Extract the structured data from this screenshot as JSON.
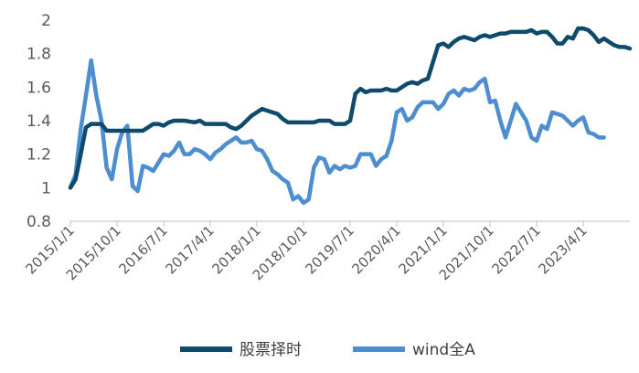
{
  "chart_data": {
    "type": "line",
    "title": "",
    "xlabel": "",
    "ylabel": "",
    "ylim": [
      0.8,
      2.0
    ],
    "yticks": [
      "0.8",
      "1",
      "1.2",
      "1.4",
      "1.6",
      "1.8",
      "2"
    ],
    "xticks": [
      "2015/1/1",
      "2015/10/1",
      "2016/7/1",
      "2017/4/1",
      "2018/1/1",
      "2018/10/1",
      "2019/7/1",
      "2020/4/1",
      "2021/1/1",
      "2021/10/1",
      "2022/7/1",
      "2023/4/1"
    ],
    "grid": false,
    "legend_position": "bottom",
    "colors": {
      "series1": "#0d4a6b",
      "series2": "#4c8ed0",
      "axis": "#bfbfbf"
    },
    "series": [
      {
        "name": "股票择时",
        "points": [
          [
            0,
            1.0
          ],
          [
            1,
            1.05
          ],
          [
            2,
            1.2
          ],
          [
            3,
            1.36
          ],
          [
            4,
            1.38
          ],
          [
            5,
            1.38
          ],
          [
            6,
            1.38
          ],
          [
            7,
            1.34
          ],
          [
            8,
            1.34
          ],
          [
            9,
            1.34
          ],
          [
            11,
            1.34
          ],
          [
            13,
            1.34
          ],
          [
            14,
            1.34
          ],
          [
            16,
            1.38
          ],
          [
            17,
            1.38
          ],
          [
            18,
            1.37
          ],
          [
            19,
            1.39
          ],
          [
            20,
            1.4
          ],
          [
            22,
            1.4
          ],
          [
            24,
            1.39
          ],
          [
            25,
            1.4
          ],
          [
            26,
            1.38
          ],
          [
            28,
            1.38
          ],
          [
            30,
            1.38
          ],
          [
            31,
            1.36
          ],
          [
            32,
            1.35
          ],
          [
            33,
            1.37
          ],
          [
            34,
            1.4
          ],
          [
            35,
            1.43
          ],
          [
            36,
            1.45
          ],
          [
            37,
            1.47
          ],
          [
            38,
            1.46
          ],
          [
            39,
            1.45
          ],
          [
            40,
            1.44
          ],
          [
            41,
            1.41
          ],
          [
            42,
            1.39
          ],
          [
            44,
            1.39
          ],
          [
            46,
            1.39
          ],
          [
            47,
            1.39
          ],
          [
            48,
            1.4
          ],
          [
            50,
            1.4
          ],
          [
            51,
            1.38
          ],
          [
            52,
            1.38
          ],
          [
            53,
            1.38
          ],
          [
            54,
            1.4
          ],
          [
            55,
            1.56
          ],
          [
            56,
            1.59
          ],
          [
            57,
            1.57
          ],
          [
            58,
            1.58
          ],
          [
            59,
            1.58
          ],
          [
            60,
            1.58
          ],
          [
            61,
            1.59
          ],
          [
            62,
            1.58
          ],
          [
            63,
            1.58
          ],
          [
            64,
            1.6
          ],
          [
            65,
            1.62
          ],
          [
            66,
            1.63
          ],
          [
            67,
            1.62
          ],
          [
            68,
            1.64
          ],
          [
            69,
            1.65
          ],
          [
            70,
            1.75
          ],
          [
            71,
            1.85
          ],
          [
            72,
            1.86
          ],
          [
            73,
            1.84
          ],
          [
            74,
            1.87
          ],
          [
            75,
            1.89
          ],
          [
            76,
            1.9
          ],
          [
            77,
            1.89
          ],
          [
            78,
            1.88
          ],
          [
            79,
            1.9
          ],
          [
            80,
            1.91
          ],
          [
            81,
            1.9
          ],
          [
            82,
            1.91
          ],
          [
            83,
            1.92
          ],
          [
            84,
            1.92
          ],
          [
            85,
            1.93
          ],
          [
            86,
            1.93
          ],
          [
            87,
            1.93
          ],
          [
            88,
            1.93
          ],
          [
            89,
            1.94
          ],
          [
            90,
            1.92
          ],
          [
            91,
            1.93
          ],
          [
            92,
            1.93
          ],
          [
            93,
            1.9
          ],
          [
            94,
            1.86
          ],
          [
            95,
            1.86
          ],
          [
            96,
            1.9
          ],
          [
            97,
            1.89
          ],
          [
            98,
            1.95
          ],
          [
            99,
            1.95
          ],
          [
            100,
            1.94
          ],
          [
            101,
            1.91
          ],
          [
            102,
            1.87
          ],
          [
            103,
            1.89
          ],
          [
            104,
            1.87
          ],
          [
            105,
            1.85
          ],
          [
            106,
            1.84
          ],
          [
            107,
            1.84
          ],
          [
            108,
            1.83
          ]
        ]
      },
      {
        "name": "wind全A",
        "points": [
          [
            0,
            1.0
          ],
          [
            1,
            1.08
          ],
          [
            2,
            1.35
          ],
          [
            3,
            1.55
          ],
          [
            4,
            1.76
          ],
          [
            5,
            1.55
          ],
          [
            6,
            1.4
          ],
          [
            7,
            1.12
          ],
          [
            8,
            1.05
          ],
          [
            9,
            1.23
          ],
          [
            10,
            1.33
          ],
          [
            11,
            1.37
          ],
          [
            12,
            1.01
          ],
          [
            13,
            0.98
          ],
          [
            14,
            1.13
          ],
          [
            15,
            1.12
          ],
          [
            16,
            1.1
          ],
          [
            17,
            1.15
          ],
          [
            18,
            1.2
          ],
          [
            19,
            1.19
          ],
          [
            20,
            1.22
          ],
          [
            21,
            1.27
          ],
          [
            22,
            1.2
          ],
          [
            23,
            1.2
          ],
          [
            24,
            1.23
          ],
          [
            25,
            1.22
          ],
          [
            26,
            1.2
          ],
          [
            27,
            1.17
          ],
          [
            28,
            1.21
          ],
          [
            29,
            1.23
          ],
          [
            30,
            1.26
          ],
          [
            31,
            1.28
          ],
          [
            32,
            1.3
          ],
          [
            33,
            1.27
          ],
          [
            34,
            1.27
          ],
          [
            35,
            1.28
          ],
          [
            36,
            1.23
          ],
          [
            37,
            1.22
          ],
          [
            38,
            1.17
          ],
          [
            39,
            1.1
          ],
          [
            40,
            1.08
          ],
          [
            41,
            1.05
          ],
          [
            42,
            1.03
          ],
          [
            43,
            0.93
          ],
          [
            44,
            0.95
          ],
          [
            45,
            0.91
          ],
          [
            46,
            0.93
          ],
          [
            47,
            1.12
          ],
          [
            48,
            1.18
          ],
          [
            49,
            1.17
          ],
          [
            50,
            1.09
          ],
          [
            51,
            1.13
          ],
          [
            52,
            1.11
          ],
          [
            53,
            1.13
          ],
          [
            54,
            1.12
          ],
          [
            55,
            1.13
          ],
          [
            56,
            1.2
          ],
          [
            57,
            1.2
          ],
          [
            58,
            1.2
          ],
          [
            59,
            1.13
          ],
          [
            60,
            1.17
          ],
          [
            61,
            1.19
          ],
          [
            62,
            1.28
          ],
          [
            63,
            1.45
          ],
          [
            64,
            1.47
          ],
          [
            65,
            1.4
          ],
          [
            66,
            1.42
          ],
          [
            67,
            1.48
          ],
          [
            68,
            1.51
          ],
          [
            69,
            1.51
          ],
          [
            70,
            1.51
          ],
          [
            71,
            1.47
          ],
          [
            72,
            1.5
          ],
          [
            73,
            1.56
          ],
          [
            74,
            1.58
          ],
          [
            75,
            1.55
          ],
          [
            76,
            1.59
          ],
          [
            77,
            1.58
          ],
          [
            78,
            1.59
          ],
          [
            79,
            1.63
          ],
          [
            80,
            1.65
          ],
          [
            81,
            1.51
          ],
          [
            82,
            1.52
          ],
          [
            83,
            1.4
          ],
          [
            84,
            1.3
          ],
          [
            85,
            1.4
          ],
          [
            86,
            1.5
          ],
          [
            87,
            1.45
          ],
          [
            88,
            1.4
          ],
          [
            89,
            1.3
          ],
          [
            90,
            1.28
          ],
          [
            91,
            1.37
          ],
          [
            92,
            1.35
          ],
          [
            93,
            1.45
          ],
          [
            94,
            1.44
          ],
          [
            95,
            1.43
          ],
          [
            96,
            1.4
          ],
          [
            97,
            1.37
          ],
          [
            98,
            1.4
          ],
          [
            99,
            1.42
          ],
          [
            100,
            1.33
          ],
          [
            101,
            1.32
          ],
          [
            102,
            1.3
          ],
          [
            103,
            1.3
          ]
        ]
      }
    ]
  }
}
